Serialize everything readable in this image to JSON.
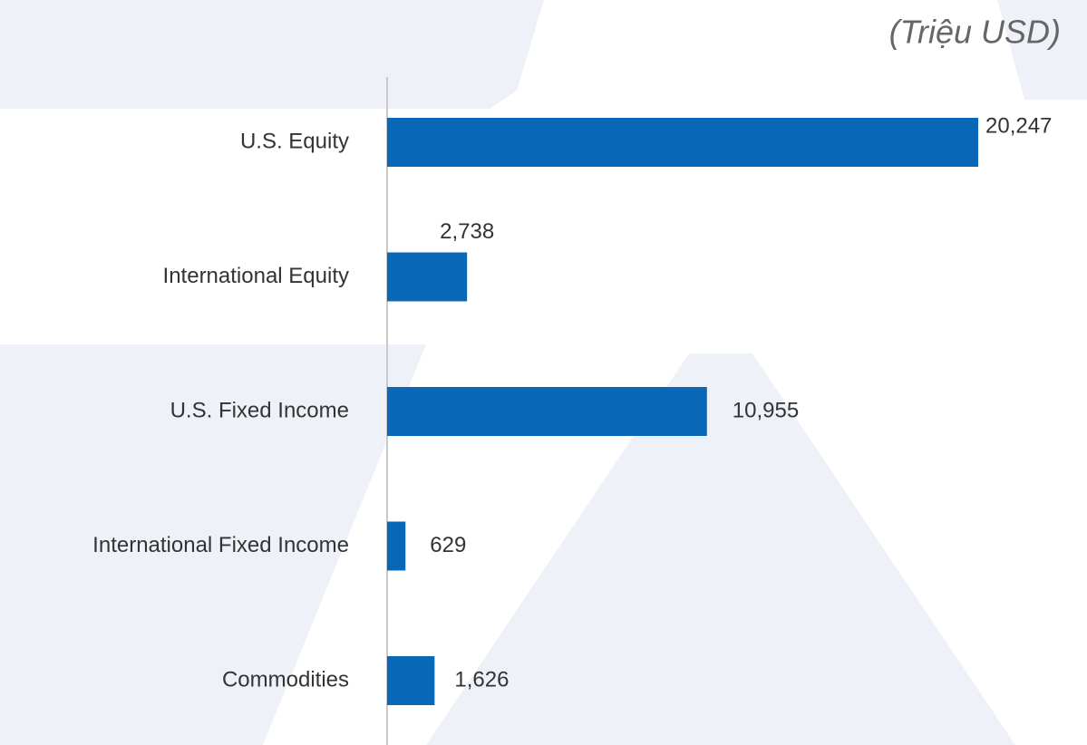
{
  "chart_data": {
    "type": "hbar",
    "subtitle": "(Triệu USD)",
    "categories": [
      "U.S. Equity",
      "International Equity",
      "U.S. Fixed Income",
      "International Fixed Income",
      "Commodities"
    ],
    "values": [
      20247,
      2738,
      10955,
      629,
      1626
    ],
    "value_labels": [
      "20,247",
      "2,738",
      "10,955",
      "629",
      "1,626"
    ],
    "color": "#0867b6"
  }
}
